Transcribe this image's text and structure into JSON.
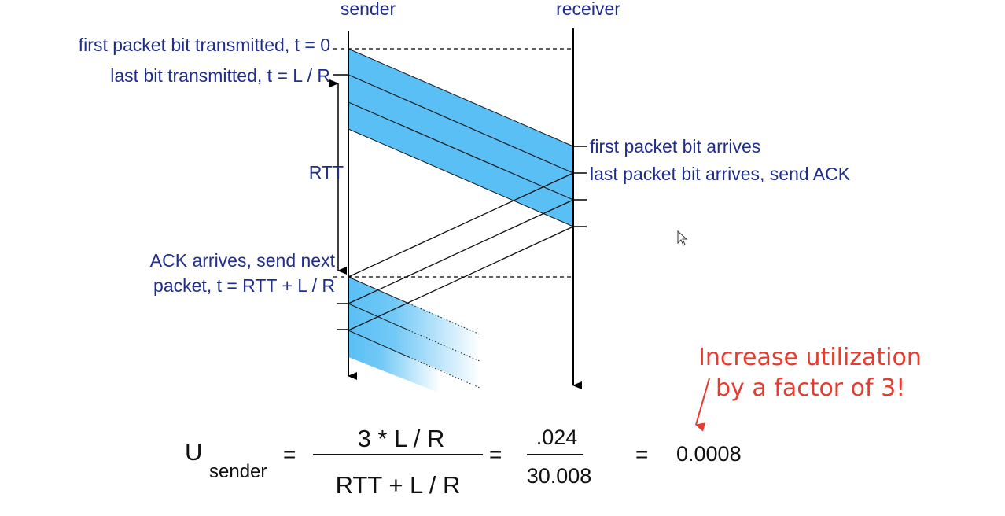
{
  "headers": {
    "sender": "sender",
    "receiver": "receiver"
  },
  "left_labels": {
    "first_bit": "first packet bit transmitted, t = 0",
    "last_bit": "last bit transmitted, t = L / R",
    "rtt": "RTT",
    "ack_line1": "ACK arrives, send next",
    "ack_line2": "packet, t = RTT + L / R"
  },
  "right_labels": {
    "first_arrives": "first packet bit arrives",
    "last_arrives": "last packet bit arrives, send ACK"
  },
  "annotation": {
    "line1": "Increase utilization",
    "line2": "by a factor of 3!"
  },
  "equation": {
    "u": "U",
    "u_sub": "sender",
    "eq1": "=",
    "num1": "3 * L / R",
    "den1": "RTT + L / R",
    "eq2": "=",
    "num2": ".024",
    "den2": "30.008",
    "eq3": "=",
    "result": "0.0008"
  },
  "colors": {
    "packet_fill": "#59bff5",
    "label": "#1f2d8c",
    "annotation": "#e63b2e"
  }
}
